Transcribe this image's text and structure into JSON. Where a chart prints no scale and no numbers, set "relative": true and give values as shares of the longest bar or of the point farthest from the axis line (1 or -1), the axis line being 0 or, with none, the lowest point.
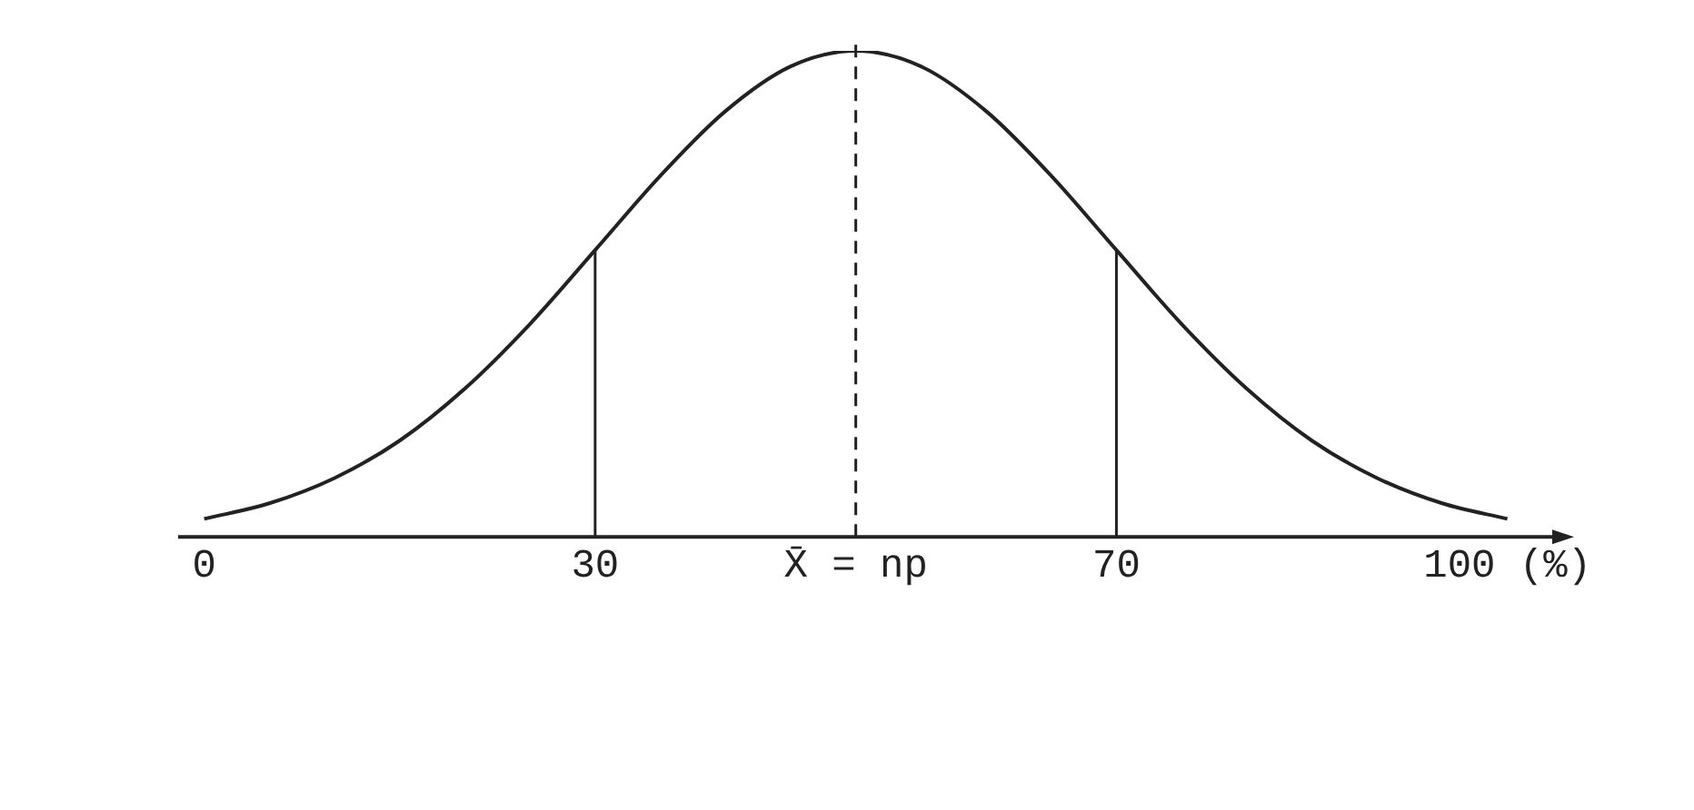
{
  "chart_data": {
    "type": "line",
    "relative": true,
    "x": [
      0,
      5,
      10,
      15,
      20,
      25,
      30,
      35,
      40,
      45,
      50,
      55,
      60,
      65,
      70,
      75,
      80,
      85,
      90,
      95,
      100
    ],
    "series": [
      {
        "color": "#222222",
        "values": [
          0.037,
          0.069,
          0.121,
          0.198,
          0.305,
          0.438,
          0.59,
          0.743,
          0.876,
          0.968,
          1,
          0.968,
          0.876,
          0.743,
          0.59,
          0.438,
          0.305,
          0.198,
          0.121,
          0.069,
          0.037
        ]
      }
    ],
    "xlim": [
      -2,
      104
    ],
    "xticks": [
      0,
      30,
      {
        "value": 50,
        "label": "X̄ = np"
      },
      70,
      {
        "value": 100,
        "label": "100 (%)"
      }
    ],
    "ref_lines": [
      {
        "axis": "x",
        "value": 30,
        "color": "#222222",
        "line_style": "solid"
      },
      {
        "axis": "x",
        "value": 50,
        "color": "#222222",
        "line_style": "dashed"
      },
      {
        "axis": "x",
        "value": 70,
        "color": "#222222",
        "line_style": "solid"
      }
    ],
    "grid": false,
    "legend": false,
    "marker": "none",
    "line_style": "solid"
  }
}
